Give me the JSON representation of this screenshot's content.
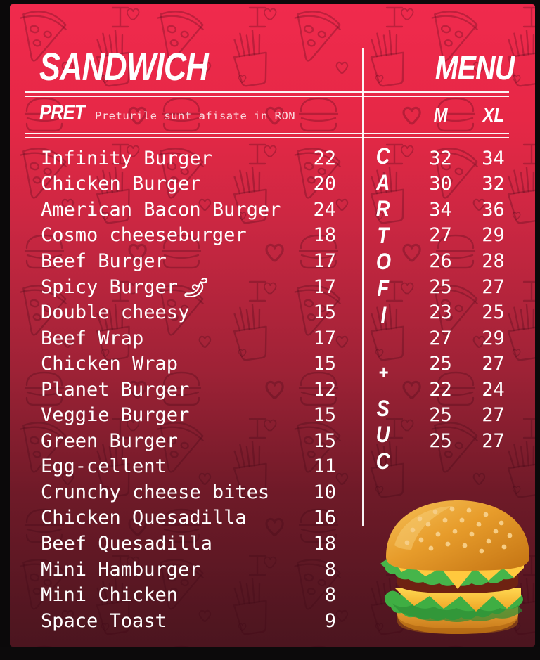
{
  "header": {
    "title_left": "SANDWICH",
    "title_right": "MENU"
  },
  "pret": {
    "label": "PRET",
    "note": "Preturile sunt afisate in RON",
    "col_m": "M",
    "col_xl": "XL"
  },
  "side_label": {
    "text": "CARTOFI + SUC",
    "letters": [
      "C",
      "A",
      "R",
      "T",
      "O",
      "F",
      "I",
      "+",
      "S",
      "U",
      "C"
    ]
  },
  "items": [
    {
      "name": "Infinity Burger",
      "price": "22",
      "m": "32",
      "xl": "34"
    },
    {
      "name": "Chicken Burger",
      "price": "20",
      "m": "30",
      "xl": "32"
    },
    {
      "name": "American Bacon Burger",
      "price": "24",
      "m": "34",
      "xl": "36"
    },
    {
      "name": "Cosmo cheeseburger",
      "price": "18",
      "m": "27",
      "xl": "29"
    },
    {
      "name": "Beef Burger",
      "price": "17",
      "m": "26",
      "xl": "28"
    },
    {
      "name": "Spicy Burger",
      "price": "17",
      "m": "25",
      "xl": "27",
      "spicy": true
    },
    {
      "name": "Double cheesy",
      "price": "15",
      "m": "23",
      "xl": "25"
    },
    {
      "name": "Beef Wrap",
      "price": "17",
      "m": "27",
      "xl": "29"
    },
    {
      "name": "Chicken Wrap",
      "price": "15",
      "m": "25",
      "xl": "27"
    },
    {
      "name": "Planet Burger",
      "price": "12",
      "m": "22",
      "xl": "24"
    },
    {
      "name": "Veggie Burger",
      "price": "15",
      "m": "25",
      "xl": "27"
    },
    {
      "name": "Green Burger",
      "price": "15",
      "m": "25",
      "xl": "27"
    },
    {
      "name": "Egg-cellent",
      "price": "11"
    },
    {
      "name": "Crunchy cheese bites",
      "price": "10"
    },
    {
      "name": "Chicken Quesadilla",
      "price": "16"
    },
    {
      "name": "Beef Quesadilla",
      "price": "18"
    },
    {
      "name": "Mini Hamburger",
      "price": "8"
    },
    {
      "name": "Mini Chicken",
      "price": "8"
    },
    {
      "name": "Space Toast",
      "price": "9"
    }
  ],
  "colors": {
    "bg_top": "#f02a4d",
    "bg_mid": "#9e2236",
    "bg_bottom": "#4b151f",
    "frame": "#0c0a0b",
    "text": "#ffffff",
    "doodle_line": "#3d0412"
  }
}
